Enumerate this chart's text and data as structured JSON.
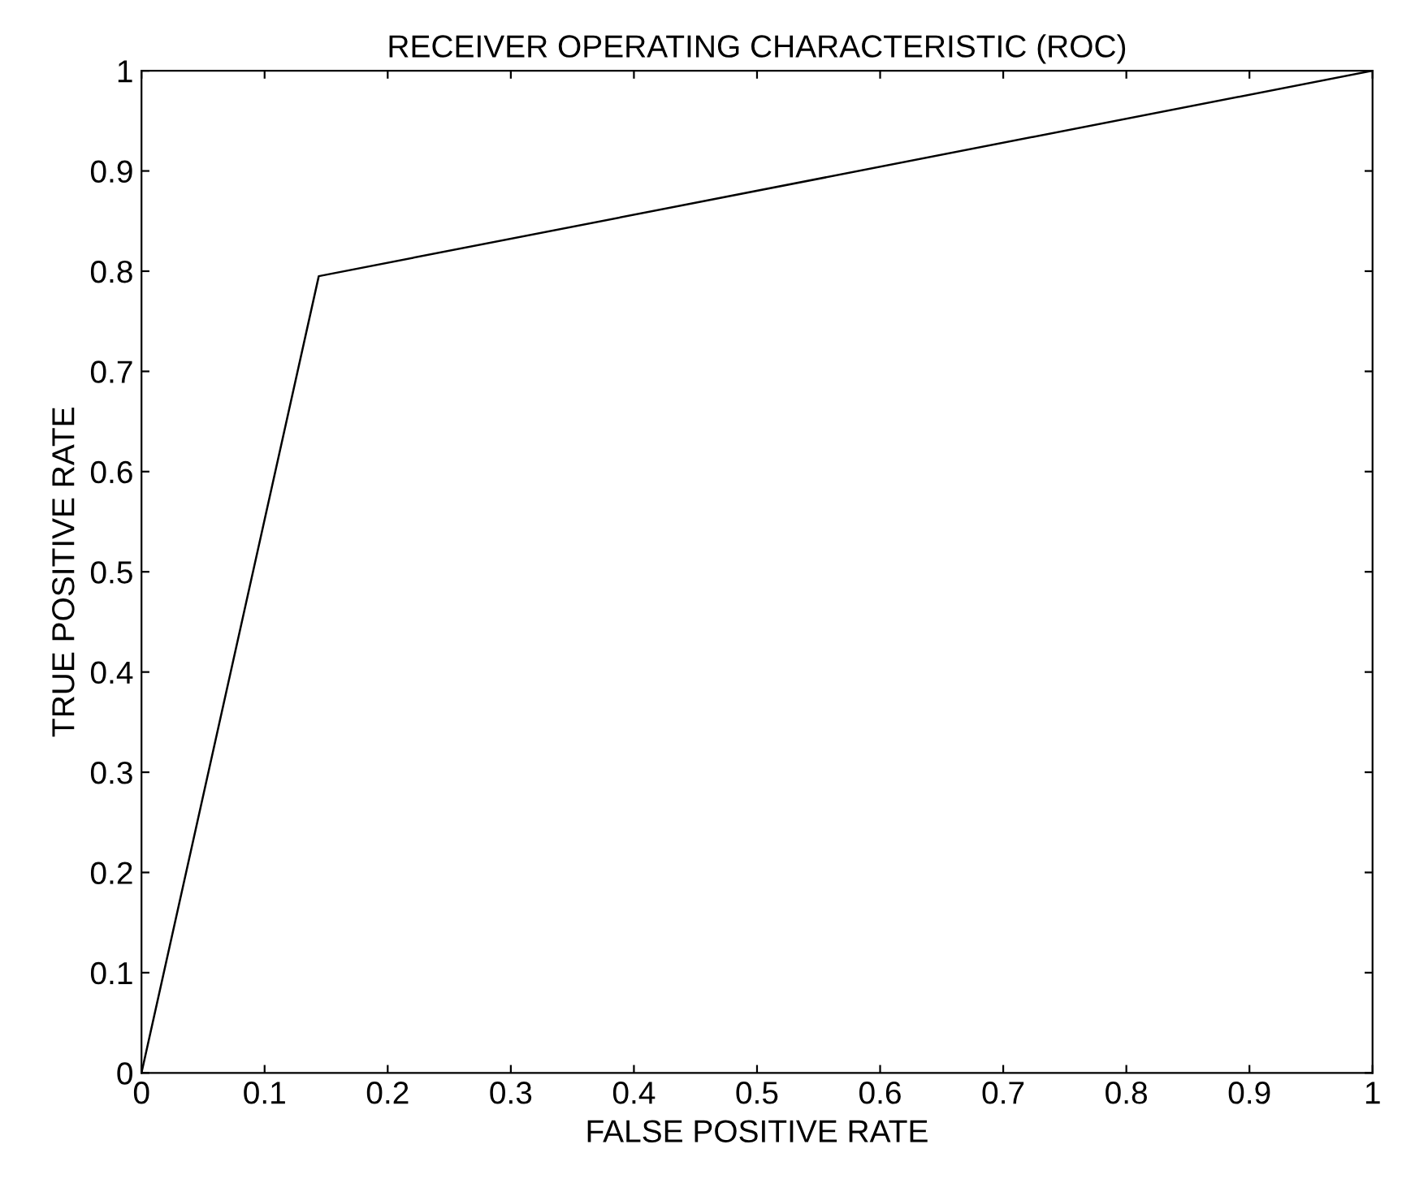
{
  "chart_data": {
    "type": "line",
    "title": "RECEIVER OPERATING CHARACTERISTIC (ROC)",
    "xlabel": "FALSE POSITIVE RATE",
    "ylabel": "TRUE POSITIVE RATE",
    "x": [
      0,
      0.144,
      1
    ],
    "series": [
      {
        "color": "#000000",
        "values": [
          0,
          0.795,
          1
        ]
      }
    ],
    "xlim": [
      0,
      1
    ],
    "ylim": [
      0,
      1
    ],
    "xticks": [
      0,
      0.1,
      0.2,
      0.3,
      0.4,
      0.5,
      0.6,
      0.7,
      0.8,
      0.9,
      1
    ],
    "yticks": [
      0,
      0.1,
      0.2,
      0.3,
      0.4,
      0.5,
      0.6,
      0.7,
      0.8,
      0.9,
      1
    ],
    "grid": false,
    "legend": false,
    "marker": "none",
    "line_style": "solid"
  }
}
